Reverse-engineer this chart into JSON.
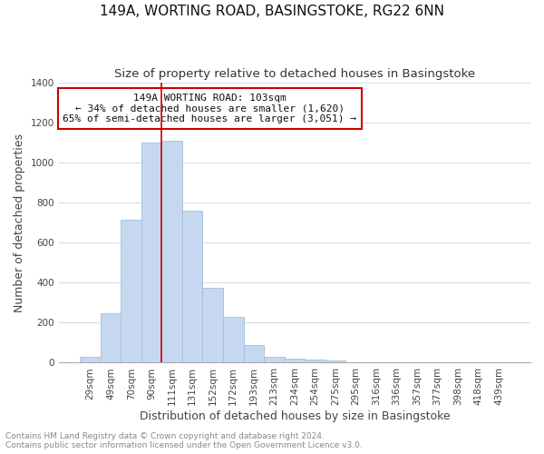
{
  "title": "149A, WORTING ROAD, BASINGSTOKE, RG22 6NN",
  "subtitle": "Size of property relative to detached houses in Basingstoke",
  "xlabel": "Distribution of detached houses by size in Basingstoke",
  "ylabel": "Number of detached properties",
  "footer_line1": "Contains HM Land Registry data © Crown copyright and database right 2024.",
  "footer_line2": "Contains public sector information licensed under the Open Government Licence v3.0.",
  "bar_labels": [
    "29sqm",
    "49sqm",
    "70sqm",
    "90sqm",
    "111sqm",
    "131sqm",
    "152sqm",
    "172sqm",
    "193sqm",
    "213sqm",
    "234sqm",
    "254sqm",
    "275sqm",
    "295sqm",
    "316sqm",
    "336sqm",
    "357sqm",
    "377sqm",
    "398sqm",
    "418sqm",
    "439sqm"
  ],
  "bar_values": [
    30,
    245,
    715,
    1100,
    1110,
    760,
    375,
    230,
    90,
    30,
    20,
    15,
    10,
    0,
    0,
    0,
    0,
    0,
    0,
    0,
    0
  ],
  "bar_color": "#c5d8f0",
  "bar_edge_color": "#a0bedd",
  "annotation_text": "149A WORTING ROAD: 103sqm\n← 34% of detached houses are smaller (1,620)\n65% of semi-detached houses are larger (3,051) →",
  "annotation_box_color": "#ffffff",
  "annotation_box_edge": "#cc0000",
  "red_line_bar_index": 4,
  "ylim": [
    0,
    1400
  ],
  "yticks": [
    0,
    200,
    400,
    600,
    800,
    1000,
    1200,
    1400
  ],
  "background_color": "#ffffff",
  "grid_color": "#ccdded",
  "title_fontsize": 11,
  "subtitle_fontsize": 9.5,
  "axis_label_fontsize": 9,
  "tick_fontsize": 7.5,
  "footer_fontsize": 6.5
}
